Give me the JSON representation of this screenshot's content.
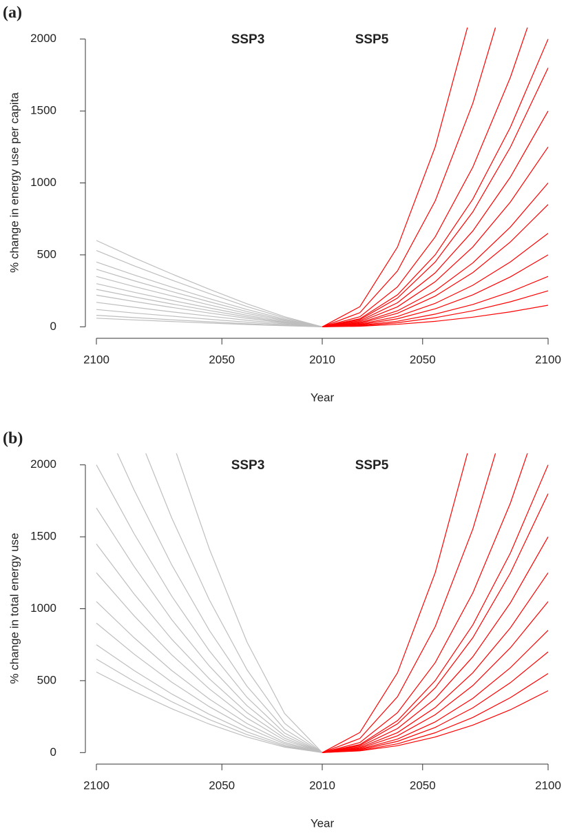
{
  "chart_data": [
    {
      "type": "line",
      "panel_label": "(a)",
      "ylabel": "% change in energy use per capita",
      "xlabel": "Year",
      "x": [
        2010,
        2025,
        2040,
        2055,
        2070,
        2085,
        2100
      ],
      "xlim_left": [
        2100,
        2010
      ],
      "xlim_right": [
        2010,
        2100
      ],
      "ylim": [
        -80,
        2080
      ],
      "yticks": [
        0,
        500,
        1000,
        1500,
        2000
      ],
      "xticks": [
        {
          "value": 2100,
          "side": "left"
        },
        {
          "value": 2050,
          "side": "left"
        },
        {
          "value": 2010,
          "side": "center"
        },
        {
          "value": 2050,
          "side": "right"
        },
        {
          "value": 2100,
          "side": "right"
        }
      ],
      "groups": [
        {
          "name": "SSP3",
          "color": "#bebebe",
          "side": "left",
          "lines": [
            [
              0,
              7,
              16,
              26,
              37,
              48,
              60
            ],
            [
              0,
              9,
              21,
              35,
              49,
              64,
              80
            ],
            [
              0,
              14,
              32,
              52,
              74,
              96,
              120
            ],
            [
              0,
              20,
              45,
              74,
              104,
              136,
              170
            ],
            [
              0,
              26,
              59,
              96,
              135,
              176,
              220
            ],
            [
              0,
              30,
              69,
              113,
              159,
              208,
              260
            ],
            [
              0,
              35,
              80,
              131,
              184,
              240,
              300
            ],
            [
              0,
              41,
              93,
              152,
              215,
              280,
              350
            ],
            [
              0,
              47,
              106,
              174,
              245,
              320,
              400
            ],
            [
              0,
              53,
              120,
              196,
              276,
              360,
              450
            ],
            [
              0,
              62,
              141,
              231,
              325,
              424,
              530
            ],
            [
              0,
              70,
              160,
              261,
              368,
              480,
              600
            ]
          ]
        },
        {
          "name": "SSP5",
          "color": "#ff0000",
          "side": "right",
          "lines": [
            [
              0,
              4,
              17,
              38,
              67,
              104,
              150
            ],
            [
              0,
              7,
              28,
              63,
              111,
              174,
              250
            ],
            [
              0,
              10,
              39,
              88,
              155,
              243,
              350
            ],
            [
              0,
              14,
              56,
              125,
              222,
              347,
              500
            ],
            [
              0,
              18,
              72,
              163,
              289,
              451,
              650
            ],
            [
              0,
              24,
              94,
              213,
              377,
              590,
              850
            ],
            [
              0,
              28,
              111,
              250,
              444,
              694,
              1000
            ],
            [
              0,
              35,
              139,
              313,
              555,
              868,
              1250
            ],
            [
              0,
              42,
              167,
              375,
              666,
              1041,
              1500
            ],
            [
              0,
              50,
              200,
              450,
              799,
              1249,
              1800
            ],
            [
              0,
              56,
              222,
              500,
              888,
              1388,
              2000
            ],
            [
              0,
              70,
              278,
              625,
              1110,
              1735,
              2500
            ],
            [
              0,
              98,
              389,
              875,
              1554,
              2429,
              3500
            ],
            [
              0,
              140,
              555,
              1250,
              2220,
              3470,
              5000
            ]
          ]
        }
      ]
    },
    {
      "type": "line",
      "panel_label": "(b)",
      "ylabel": "% change in total energy use",
      "xlabel": "Year",
      "x": [
        2010,
        2025,
        2040,
        2055,
        2070,
        2085,
        2100
      ],
      "xlim_left": [
        2100,
        2010
      ],
      "xlim_right": [
        2010,
        2100
      ],
      "ylim": [
        -80,
        2080
      ],
      "yticks": [
        0,
        500,
        1000,
        1500,
        2000
      ],
      "xticks": [
        {
          "value": 2100,
          "side": "left"
        },
        {
          "value": 2050,
          "side": "left"
        },
        {
          "value": 2010,
          "side": "center"
        },
        {
          "value": 2050,
          "side": "right"
        },
        {
          "value": 2100,
          "side": "right"
        }
      ],
      "groups": [
        {
          "name": "SSP3",
          "color": "#bebebe",
          "side": "left",
          "lines": [
            [
              0,
              38,
              108,
              198,
              305,
              426,
              560
            ],
            [
              0,
              44,
              125,
              230,
              354,
              495,
              650
            ],
            [
              0,
              51,
              144,
              266,
              408,
              571,
              750
            ],
            [
              0,
              61,
              173,
              319,
              490,
              685,
              900
            ],
            [
              0,
              71,
              202,
              372,
              571,
              799,
              1050
            ],
            [
              0,
              85,
              240,
              443,
              680,
              951,
              1250
            ],
            [
              0,
              99,
              278,
              513,
              789,
              1103,
              1450
            ],
            [
              0,
              116,
              326,
              602,
              925,
              1294,
              1700
            ],
            [
              0,
              136,
              384,
              708,
              1088,
              1522,
              2000
            ],
            [
              0,
              163,
              461,
              850,
              1306,
              1826,
              2400
            ],
            [
              0,
              204,
              576,
              1062,
              1632,
              2283,
              3000
            ],
            [
              0,
              272,
              768,
              1416,
              2176,
              3044,
              4000
            ]
          ]
        },
        {
          "name": "SSP5",
          "color": "#ff0000",
          "side": "right",
          "lines": [
            [
              0,
              12,
              48,
              108,
              191,
              298,
              430
            ],
            [
              0,
              15,
              61,
              138,
              244,
              382,
              550
            ],
            [
              0,
              20,
              78,
              175,
              311,
              486,
              700
            ],
            [
              0,
              24,
              94,
              213,
              377,
              590,
              850
            ],
            [
              0,
              29,
              117,
              263,
              466,
              729,
              1050
            ],
            [
              0,
              35,
              139,
              313,
              555,
              868,
              1250
            ],
            [
              0,
              42,
              167,
              375,
              666,
              1041,
              1500
            ],
            [
              0,
              50,
              200,
              450,
              799,
              1249,
              1800
            ],
            [
              0,
              56,
              222,
              500,
              888,
              1388,
              2000
            ],
            [
              0,
              70,
              278,
              625,
              1110,
              1735,
              2500
            ],
            [
              0,
              98,
              389,
              875,
              1554,
              2429,
              3500
            ],
            [
              0,
              140,
              555,
              1250,
              2220,
              3470,
              5000
            ]
          ]
        }
      ]
    }
  ]
}
